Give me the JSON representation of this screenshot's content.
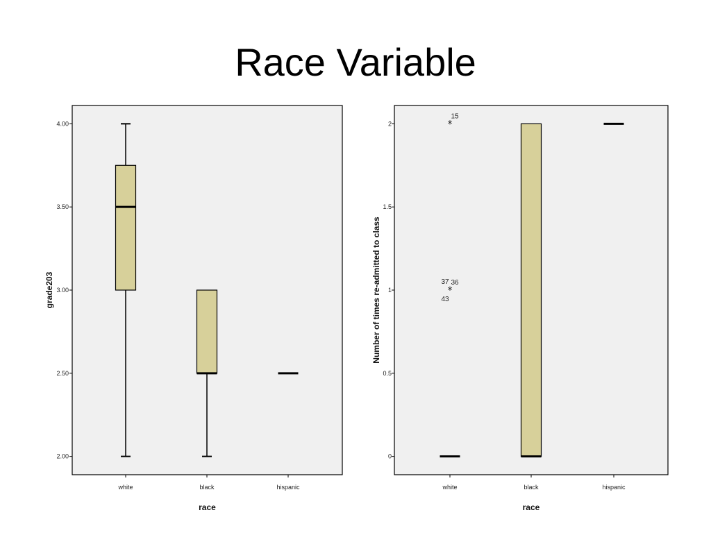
{
  "slide": {
    "title": "Race Variable"
  },
  "colors": {
    "box_fill": "#d7d09a",
    "plot_bg": "#f0f0f0",
    "stroke": "#000000"
  },
  "chart_data": [
    {
      "type": "boxplot",
      "xlabel": "race",
      "ylabel": "grade203",
      "categories": [
        "white",
        "black",
        "hispanic"
      ],
      "ylim": [
        1.89,
        4.11
      ],
      "yticks": [
        "2.00",
        "2.50",
        "3.00",
        "3.50",
        "4.00"
      ],
      "grid": false,
      "boxes": [
        {
          "category": "white",
          "min": 2.0,
          "q1": 3.0,
          "median": 3.5,
          "q3": 3.75,
          "max": 4.0
        },
        {
          "category": "black",
          "min": 2.0,
          "q1": 2.5,
          "median": 2.5,
          "q3": 3.0,
          "max": 3.0
        },
        {
          "category": "hispanic",
          "min": 2.5,
          "q1": 2.5,
          "median": 2.5,
          "q3": 2.5,
          "max": 2.5
        }
      ],
      "outliers": []
    },
    {
      "type": "boxplot",
      "xlabel": "race",
      "ylabel": "Number of times re-admitted to class",
      "categories": [
        "white",
        "black",
        "hispanic"
      ],
      "ylim": [
        -0.11,
        2.11
      ],
      "yticks": [
        "0",
        "0.5",
        "1",
        "1.5",
        "2"
      ],
      "grid": false,
      "boxes": [
        {
          "category": "white",
          "min": 0,
          "q1": 0,
          "median": 0,
          "q3": 0,
          "max": 0
        },
        {
          "category": "black",
          "min": 0,
          "q1": 0,
          "median": 0,
          "q3": 2,
          "max": 2
        },
        {
          "category": "hispanic",
          "min": 2,
          "q1": 2,
          "median": 2,
          "q3": 2,
          "max": 2
        }
      ],
      "outliers": [
        {
          "category": "white",
          "value": 2,
          "marker": "*",
          "labels": [
            "15"
          ]
        },
        {
          "category": "white",
          "value": 1,
          "marker": "*",
          "labels": [
            "37",
            "36",
            "43"
          ]
        }
      ]
    }
  ]
}
